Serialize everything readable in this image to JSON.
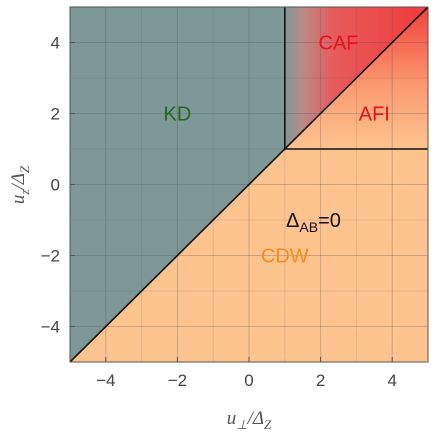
{
  "chart_data": {
    "type": "area",
    "xlabel": "u⊥/ΔZ",
    "ylabel": "uz/ΔZ",
    "xlabel_parts": {
      "main": "u",
      "sub1": "⊥",
      "mid": "/Δ",
      "sub2": "Z"
    },
    "ylabel_parts": {
      "main": "u",
      "sub1": "z",
      "mid": "/Δ",
      "sub2": "Z"
    },
    "xlim": [
      -5,
      5
    ],
    "ylim": [
      -5,
      5
    ],
    "xticks": [
      -4,
      -2,
      0,
      2,
      4
    ],
    "yticks": [
      -4,
      -2,
      0,
      2,
      4
    ],
    "xtick_labels": [
      "−4",
      "−2",
      "0",
      "2",
      "4"
    ],
    "ytick_labels": [
      "−4",
      "−2",
      "0",
      "2",
      "4"
    ],
    "grid": true,
    "minor_grid_step": 1,
    "regions": [
      {
        "name": "KD",
        "label": "KD",
        "color": "#7e9898",
        "label_color": "#1e6b1e",
        "label_at": [
          -2.0,
          2.0
        ],
        "polygon": [
          [
            -5,
            -5
          ],
          [
            -5,
            5
          ],
          [
            1,
            5
          ],
          [
            1,
            1
          ]
        ]
      },
      {
        "name": "CDW",
        "label": "CDW",
        "color": "#fdc490",
        "label_color": "#f28c1e",
        "label_at": [
          1.0,
          -2.0
        ],
        "polygon": [
          [
            -5,
            -5
          ],
          [
            5,
            -5
          ],
          [
            5,
            1
          ],
          [
            1,
            1
          ]
        ]
      },
      {
        "name": "AFI",
        "label": "AFI",
        "color": "#f56a50",
        "label_color": "#e8121e",
        "label_at": [
          3.5,
          2.0
        ],
        "polygon": [
          [
            1,
            1
          ],
          [
            5,
            1
          ],
          [
            5,
            5
          ]
        ]
      },
      {
        "name": "CAF",
        "label": "CAF",
        "color": "#ee3a3a",
        "label_color": "#e8121e",
        "label_at": [
          2.5,
          4.0
        ],
        "polygon": [
          [
            1,
            1
          ],
          [
            5,
            5
          ],
          [
            1,
            5
          ]
        ]
      }
    ],
    "boundaries": [
      {
        "from": [
          -5,
          -5
        ],
        "to": [
          5,
          5
        ]
      },
      {
        "from": [
          1,
          1
        ],
        "to": [
          1,
          5
        ]
      },
      {
        "from": [
          1,
          1
        ],
        "to": [
          5,
          1
        ]
      }
    ],
    "annotations": [
      {
        "text": "Δ",
        "sub": "AB",
        "rest": "=0",
        "at": [
          1.8,
          -1.0
        ],
        "color": "#111111"
      }
    ]
  }
}
